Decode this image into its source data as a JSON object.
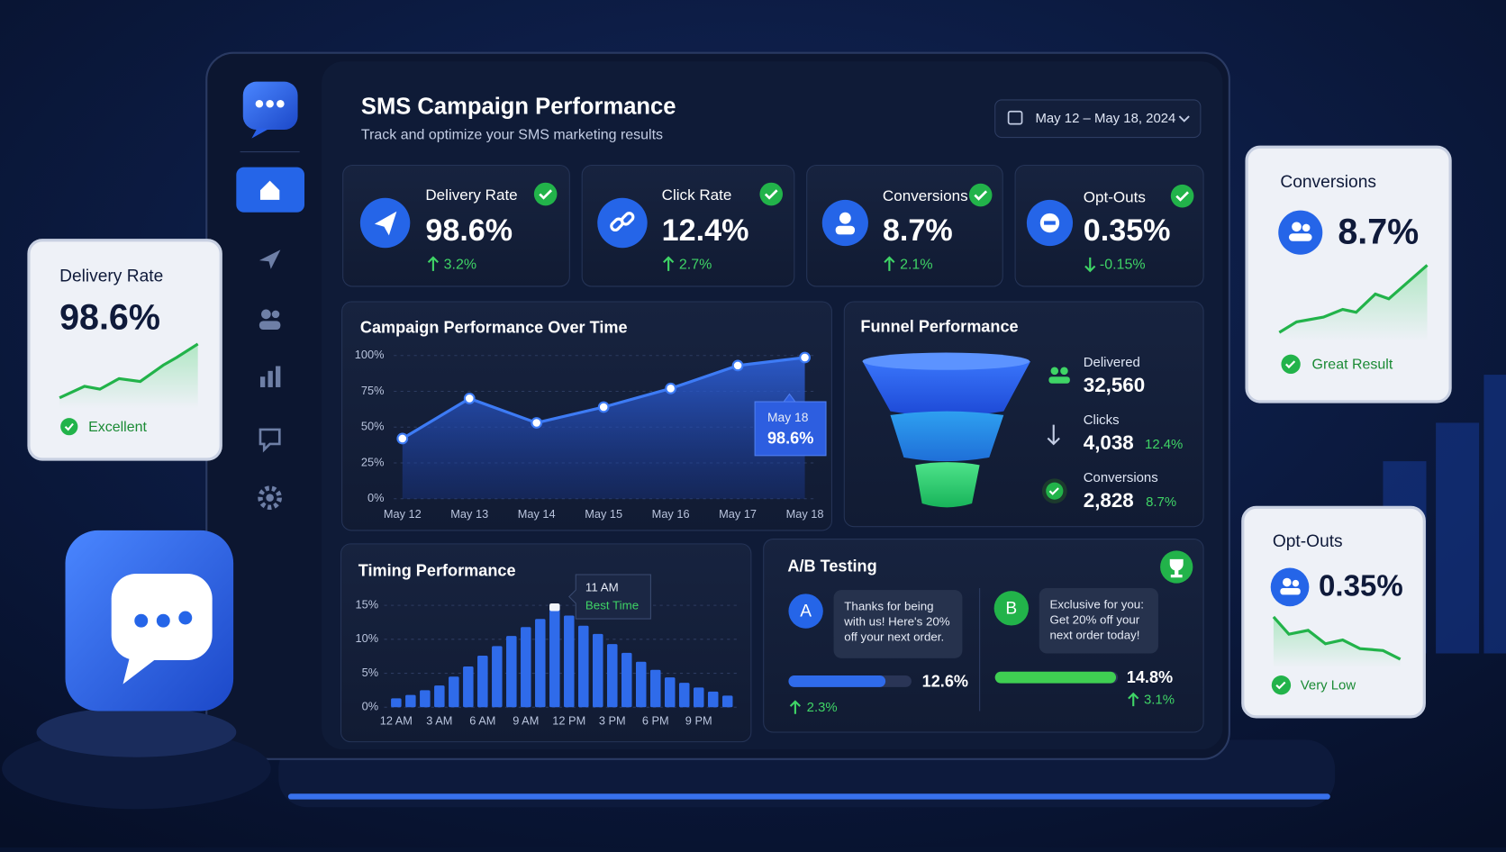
{
  "header": {
    "title": "SMS Campaign Performance",
    "subtitle": "Track and optimize your SMS marketing results",
    "date_range": "May 12 – May 18, 2024"
  },
  "kpis": [
    {
      "label": "Delivery Rate",
      "value": "98.6%",
      "change": "3.2%"
    },
    {
      "label": "Click Rate",
      "value": "12.4%",
      "change": "2.7%"
    },
    {
      "label": "Conversions",
      "value": "8.7%",
      "change": "2.1%"
    },
    {
      "label": "Opt-Outs",
      "value": "0.35%",
      "change": "-0.15%"
    }
  ],
  "chart_data": [
    {
      "type": "line",
      "title": "Campaign Performance Over Time",
      "categories": [
        "May 12",
        "May 13",
        "May 14",
        "May 15",
        "May 16",
        "May 17",
        "May 18"
      ],
      "values": [
        42,
        70,
        53,
        64,
        77,
        93,
        98.6
      ],
      "value_labels": [
        null,
        null,
        null,
        null,
        null,
        null,
        "98.6%"
      ],
      "ylim": [
        0,
        100
      ],
      "yticks": [
        {
          "value": 0,
          "label": "0%"
        },
        {
          "value": 25,
          "label": "25%"
        },
        {
          "value": 50,
          "label": "50%"
        },
        {
          "value": 75,
          "label": "75%"
        },
        {
          "value": 100,
          "label": "100%"
        }
      ],
      "color": "#3d7bf5",
      "grid": true
    },
    {
      "type": "bar",
      "title": "Timing Performance",
      "categories": [
        "12 AM",
        null,
        null,
        "3 AM",
        null,
        null,
        "6 AM",
        null,
        null,
        "9 AM",
        null,
        null,
        "12 PM",
        null,
        null,
        "3 PM",
        null,
        null,
        "6 PM",
        null,
        null,
        "9 PM",
        null,
        null
      ],
      "values": [
        1.3,
        1.8,
        2.5,
        3.2,
        4.5,
        6,
        7.6,
        9,
        10.5,
        11.8,
        13,
        15,
        13.5,
        12,
        10.8,
        9.3,
        8,
        6.7,
        5.5,
        4.4,
        3.6,
        2.9,
        2.3,
        1.7
      ],
      "ylim": [
        0,
        15
      ],
      "yticks": [
        {
          "value": 0,
          "label": "0%"
        },
        {
          "value": 5,
          "label": "5%"
        },
        {
          "value": 10,
          "label": "10%"
        },
        {
          "value": 15,
          "label": "15%"
        }
      ],
      "color": "#2f6bea",
      "grid": true,
      "annotation": {
        "label": "11 AM",
        "text": "Best Time"
      }
    }
  ],
  "funnel": {
    "title": "Funnel Performance",
    "stages": [
      {
        "label": "Delivered",
        "value": "32,560"
      },
      {
        "label": "Clicks",
        "value": "4,038",
        "rate": "12.4%"
      },
      {
        "label": "Conversions",
        "value": "2,828",
        "rate": "8.7%"
      }
    ]
  },
  "ab_test": {
    "title": "A/B Testing",
    "variants": [
      {
        "badge": "A",
        "message": "Thanks for being with us! Here's 20% off your next order.",
        "rate": "12.6%",
        "change": "2.3%"
      },
      {
        "badge": "B",
        "message": "Exclusive for you: Get 20% off your next order today!",
        "rate": "14.8%",
        "change": "3.1%"
      }
    ]
  },
  "side_cards": [
    {
      "label": "Delivery Rate",
      "value": "98.6%",
      "status": "Excellent"
    },
    {
      "label": "Conversions",
      "value": "8.7%",
      "status": "Great Result"
    },
    {
      "label": "Opt-Outs",
      "value": "0.35%",
      "status": "Very Low"
    }
  ]
}
